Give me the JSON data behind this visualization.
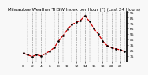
{
  "title": "Milwaukee Weather THSW Index per Hour (F) (Last 24 Hours)",
  "x_values": [
    0,
    1,
    2,
    3,
    4,
    5,
    6,
    7,
    8,
    9,
    10,
    11,
    12,
    13,
    14,
    15,
    16,
    17,
    18,
    19,
    20,
    21,
    22,
    23
  ],
  "y_values": [
    20,
    17,
    14,
    17,
    15,
    19,
    24,
    30,
    42,
    52,
    63,
    72,
    76,
    80,
    88,
    78,
    65,
    55,
    42,
    34,
    30,
    28,
    26,
    23
  ],
  "line_color": "#cc0000",
  "marker_color": "#000000",
  "background_color": "#f8f8f8",
  "grid_color": "#888888",
  "title_color": "#000000",
  "ylim": [
    5,
    95
  ],
  "xlim": [
    -0.5,
    23.5
  ],
  "y_ticks": [
    15,
    25,
    35,
    45,
    55,
    65,
    75,
    85,
    95
  ],
  "y_tick_labels": [
    "15",
    "25",
    "35",
    "45",
    "55",
    "65",
    "75",
    "85",
    "95"
  ],
  "x_ticks": [
    0,
    2,
    4,
    6,
    8,
    10,
    12,
    14,
    16,
    18,
    20,
    22
  ],
  "x_tick_labels": [
    "0",
    "2",
    "4",
    "6",
    "8",
    "10",
    "12",
    "14",
    "16",
    "18",
    "20",
    "22"
  ],
  "title_fontsize": 4.0,
  "tick_fontsize": 3.2,
  "linewidth": 0.9,
  "markersize": 1.8
}
